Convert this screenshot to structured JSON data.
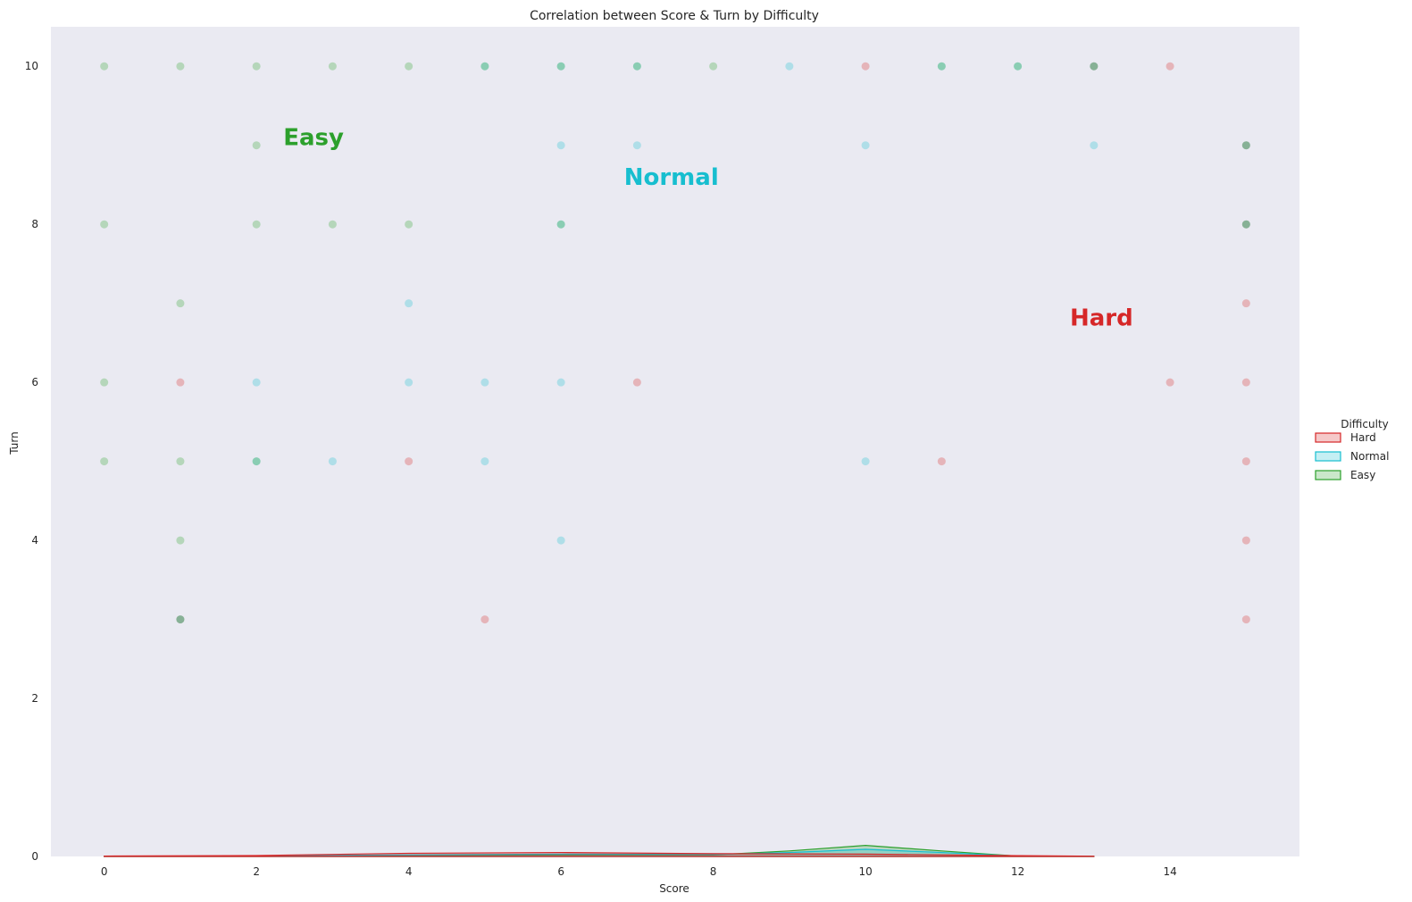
{
  "chart_data": {
    "type": "scatter",
    "title": "Correlation between Score & Turn by Difficulty",
    "xlabel": "Score",
    "ylabel": "Turn",
    "xlim": [
      -0.7,
      15.7
    ],
    "ylim": [
      0,
      10.5
    ],
    "xticks": [
      0,
      2,
      4,
      6,
      8,
      10,
      12,
      14
    ],
    "yticks": [
      0,
      2,
      4,
      6,
      8,
      10
    ],
    "grid": false,
    "background": "#eaeaf2",
    "legend": {
      "title": "Difficulty",
      "placement": "center-right"
    },
    "series": [
      {
        "name": "Hard",
        "color": "#d62728",
        "points": [
          [
            10,
            10
          ],
          [
            14,
            10
          ],
          [
            1,
            6
          ],
          [
            7,
            6
          ],
          [
            14,
            6
          ],
          [
            4,
            5
          ],
          [
            11,
            5
          ],
          [
            5,
            3
          ],
          [
            15,
            7
          ],
          [
            15,
            6
          ],
          [
            15,
            5
          ],
          [
            15,
            4
          ],
          [
            15,
            3
          ],
          [
            15,
            9
          ],
          [
            15,
            8
          ],
          [
            13,
            10
          ],
          [
            1,
            3
          ]
        ],
        "density": [
          [
            0,
            0.005
          ],
          [
            2,
            0.012
          ],
          [
            4,
            0.04
          ],
          [
            6,
            0.05
          ],
          [
            8,
            0.035
          ],
          [
            10,
            0.03
          ],
          [
            12,
            0.01
          ],
          [
            13,
            0.003
          ]
        ]
      },
      {
        "name": "Normal",
        "color": "#17becf",
        "points": [
          [
            5,
            10
          ],
          [
            6,
            10
          ],
          [
            7,
            10
          ],
          [
            9,
            10
          ],
          [
            11,
            10
          ],
          [
            12,
            10
          ],
          [
            6,
            9
          ],
          [
            7,
            9
          ],
          [
            10,
            9
          ],
          [
            13,
            9
          ],
          [
            6,
            8
          ],
          [
            4,
            7
          ],
          [
            2,
            6
          ],
          [
            4,
            6
          ],
          [
            5,
            6
          ],
          [
            6,
            6
          ],
          [
            3,
            5
          ],
          [
            5,
            5
          ],
          [
            10,
            5
          ],
          [
            2,
            5
          ],
          [
            6,
            4
          ],
          [
            13,
            10
          ],
          [
            15,
            9
          ],
          [
            15,
            8
          ],
          [
            1,
            3
          ]
        ],
        "density": [
          [
            0,
            0.002
          ],
          [
            2,
            0.006
          ],
          [
            4,
            0.02
          ],
          [
            6,
            0.03
          ],
          [
            8,
            0.025
          ],
          [
            9,
            0.05
          ],
          [
            10,
            0.09
          ],
          [
            11,
            0.05
          ],
          [
            12,
            0.005
          ],
          [
            13,
            0.001
          ]
        ]
      },
      {
        "name": "Easy",
        "color": "#2ca02c",
        "points": [
          [
            0,
            10
          ],
          [
            1,
            10
          ],
          [
            2,
            10
          ],
          [
            3,
            10
          ],
          [
            4,
            10
          ],
          [
            5,
            10
          ],
          [
            6,
            10
          ],
          [
            7,
            10
          ],
          [
            8,
            10
          ],
          [
            2,
            9
          ],
          [
            0,
            8
          ],
          [
            2,
            8
          ],
          [
            3,
            8
          ],
          [
            4,
            8
          ],
          [
            6,
            8
          ],
          [
            1,
            7
          ],
          [
            0,
            6
          ],
          [
            0,
            5
          ],
          [
            1,
            5
          ],
          [
            2,
            5
          ],
          [
            1,
            4
          ],
          [
            12,
            10
          ],
          [
            13,
            10
          ],
          [
            11,
            10
          ],
          [
            15,
            9
          ],
          [
            15,
            8
          ],
          [
            1,
            3
          ]
        ],
        "density": [
          [
            0,
            0.001
          ],
          [
            2,
            0.004
          ],
          [
            4,
            0.012
          ],
          [
            6,
            0.02
          ],
          [
            8,
            0.02
          ],
          [
            9,
            0.07
          ],
          [
            10,
            0.14
          ],
          [
            11,
            0.07
          ],
          [
            12,
            0.004
          ],
          [
            13,
            0.001
          ]
        ]
      }
    ],
    "annotations": [
      {
        "text": "Easy",
        "x": 2.75,
        "y": 9.0,
        "color": "#2ca02c"
      },
      {
        "text": "Normal",
        "x": 7.45,
        "y": 8.5,
        "color": "#17becf"
      },
      {
        "text": "Hard",
        "x": 13.1,
        "y": 6.72,
        "color": "#d62728"
      }
    ]
  }
}
